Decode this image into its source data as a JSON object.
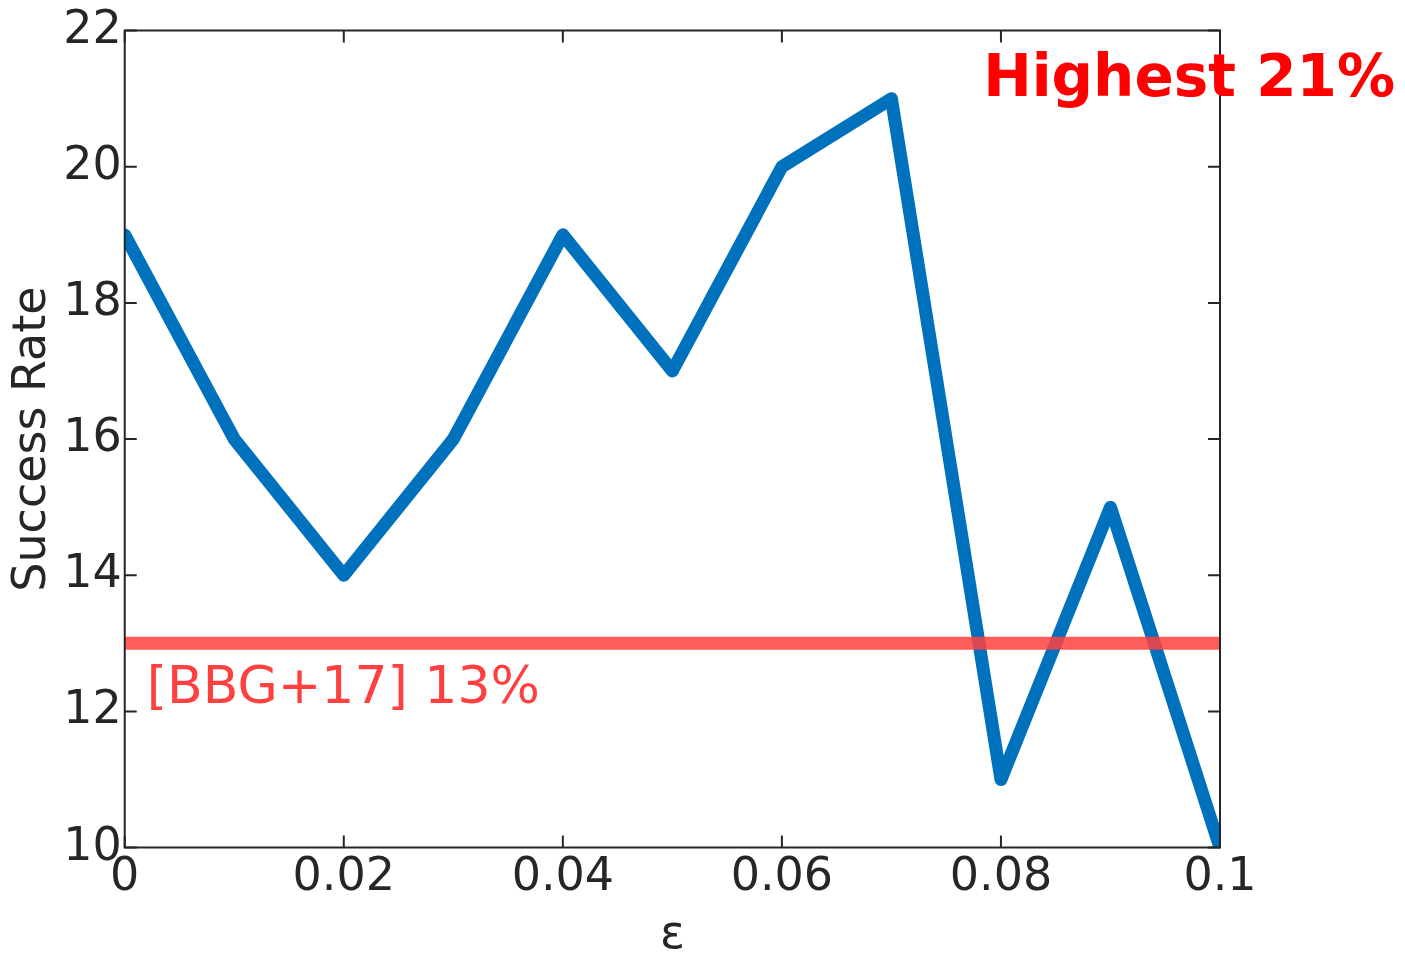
{
  "chart_data": {
    "type": "line",
    "xlabel": "ε",
    "ylabel": "Success Rate",
    "x": [
      0,
      0.01,
      0.02,
      0.03,
      0.04,
      0.05,
      0.06,
      0.07,
      0.08,
      0.09,
      0.1
    ],
    "series": [
      {
        "color": "#0072bd",
        "values": [
          19,
          16,
          14,
          16,
          19,
          17,
          20,
          21,
          11,
          15,
          10
        ]
      }
    ],
    "xlim": [
      0,
      0.1
    ],
    "xticks": [
      0,
      0.02,
      0.04,
      0.06,
      0.08,
      0.1
    ],
    "ylim": [
      10,
      22
    ],
    "yticks": [
      10,
      12,
      14,
      16,
      18,
      20,
      22
    ],
    "ref_lines": [
      {
        "axis": "y",
        "value": 13,
        "label": "[BBG+17] 13%",
        "color": "#ff4040"
      }
    ],
    "annotations": [
      "Highest 21%"
    ]
  }
}
